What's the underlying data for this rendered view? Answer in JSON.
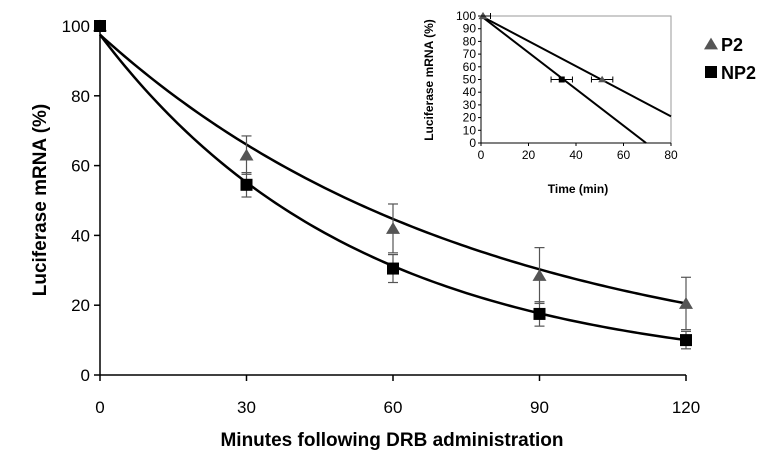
{
  "chart_data": [
    {
      "type": "line",
      "title": "",
      "xlabel": "Minutes following DRB administration",
      "ylabel": "Luciferase mRNA (%)",
      "xlim": [
        0,
        120
      ],
      "ylim": [
        0,
        100
      ],
      "xticks": [
        0,
        30,
        60,
        90,
        120
      ],
      "yticks": [
        0,
        20,
        40,
        60,
        80,
        100
      ],
      "grid": false,
      "legend_position": "top-right",
      "x": [
        0,
        30,
        60,
        90,
        120
      ],
      "series": [
        {
          "name": "P2",
          "marker": "triangle",
          "values": [
            100,
            63,
            42,
            28.5,
            20.5
          ],
          "error": [
            0,
            5.5,
            7,
            8,
            7.5
          ],
          "fit": "exponential",
          "fit_start": 97.5
        },
        {
          "name": "NP2",
          "marker": "square",
          "values": [
            100,
            54.5,
            30.5,
            17.5,
            10
          ],
          "error": [
            0,
            3.5,
            4,
            3.5,
            2.5
          ],
          "fit": "exponential",
          "fit_start": 97.5
        }
      ]
    },
    {
      "type": "line",
      "title": "",
      "xlabel": "Time (min)",
      "ylabel": "Luciferase mRNA (%)",
      "xlim": [
        0,
        80
      ],
      "ylim": [
        0,
        100
      ],
      "xticks": [
        0,
        20,
        40,
        60,
        80
      ],
      "yticks": [
        0,
        10,
        20,
        30,
        40,
        50,
        60,
        70,
        80,
        90,
        100
      ],
      "grid": false,
      "lines": [
        {
          "name": "P2",
          "x": [
            0,
            80
          ],
          "y": [
            100,
            21
          ]
        },
        {
          "name": "NP2",
          "x": [
            0,
            69.5
          ],
          "y": [
            100,
            0
          ]
        }
      ],
      "points": [
        {
          "name": "P2",
          "marker": "triangle",
          "x": 51,
          "y": 50,
          "xerr": 4.5
        },
        {
          "name": "NP2",
          "marker": "square",
          "x": 34,
          "y": 50,
          "xerr": 4.5
        }
      ]
    }
  ]
}
